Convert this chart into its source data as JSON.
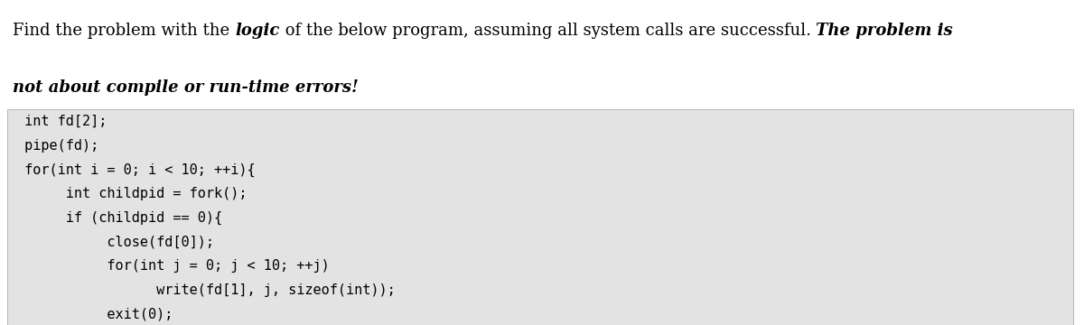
{
  "title_parts": [
    {
      "text": "Find the problem with the ",
      "style": "normal"
    },
    {
      "text": "logic",
      "style": "italic"
    },
    {
      "text": " of the below program, assuming all system calls are successful. ",
      "style": "normal"
    },
    {
      "text": "The problem is",
      "style": "italic"
    }
  ],
  "title_line2": "not about compile or run-time errors!",
  "code_lines": [
    " int fd[2];",
    " pipe(fd);",
    " for(int i = 0; i < 10; ++i){",
    "      int childpid = fork();",
    "      if (childpid == 0){",
    "           close(fd[0]);",
    "           for(int j = 0; j < 10; ++j)",
    "                 write(fd[1], j, sizeof(int));",
    "           exit(0);",
    "      }",
    " }"
  ],
  "bg_color": "#e3e3e3",
  "text_color": "#000000",
  "code_font_size": 11.0,
  "title_font_size": 13.0,
  "fig_width": 12.0,
  "fig_height": 3.6,
  "dpi": 100
}
